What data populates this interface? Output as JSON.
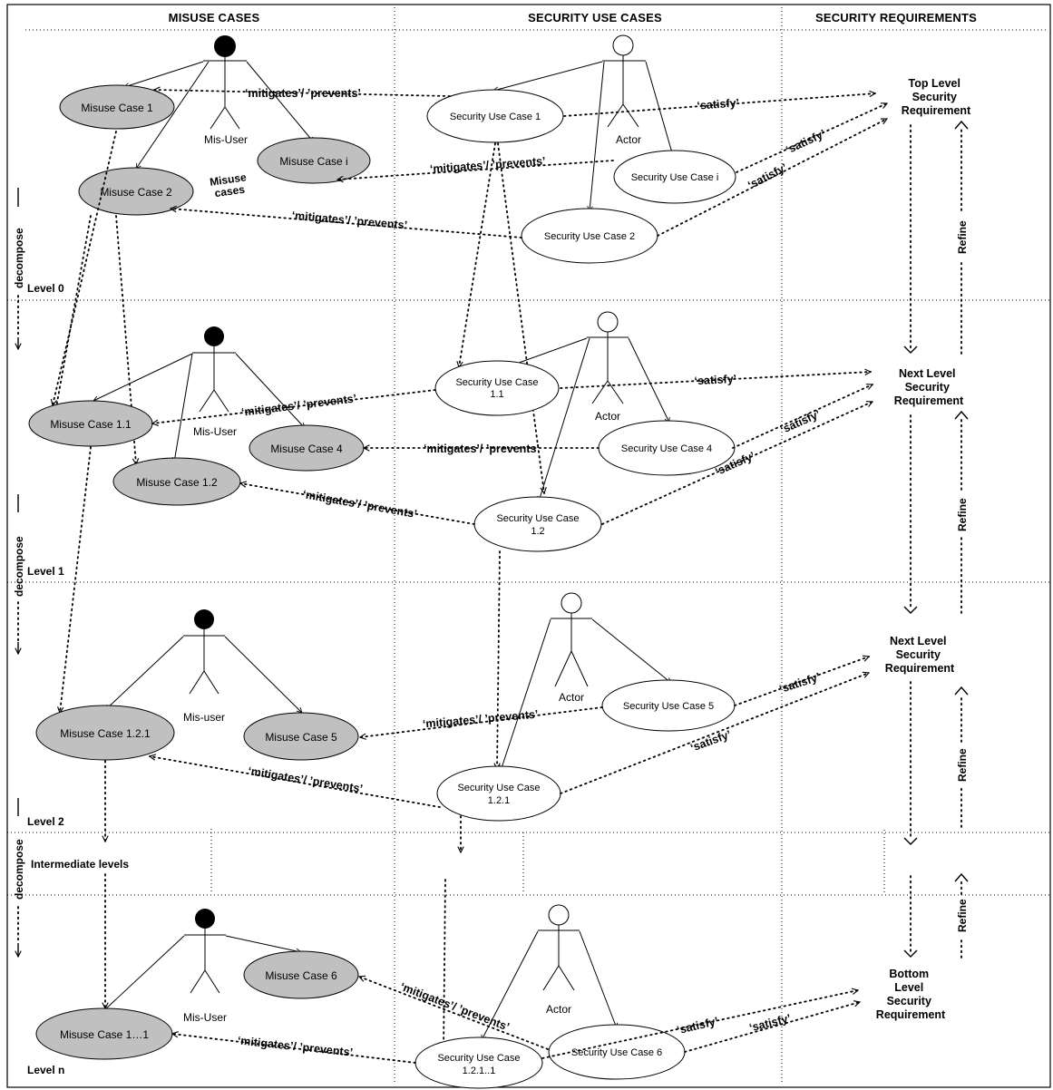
{
  "headers": {
    "misuse": "MISUSE CASES",
    "security_use": "SECURITY USE CASES",
    "requirements": "SECURITY REQUIREMENTS"
  },
  "levels": {
    "l0": "Level 0",
    "l1": "Level 1",
    "l2": "Level 2",
    "intermediate": "Intermediate levels",
    "ln": "Level n"
  },
  "decompose": "decompose",
  "refine": "Refine",
  "actors": {
    "misuser0": "Mis-User",
    "actor0": "Actor",
    "misuser1": "Mis-User",
    "actor1": "Actor",
    "misuser2": "Mis-user",
    "actor2": "Actor",
    "misusern": "Mis-User",
    "actorn": "Actor"
  },
  "misuse_cases": {
    "mc1": "Misuse Case 1",
    "mci": "Misuse Case i",
    "mc2": "Misuse Case 2",
    "mc11": "Misuse Case 1.1",
    "mc4": "Misuse Case 4",
    "mc12": "Misuse Case 1.2",
    "mc121": "Misuse Case 1.2.1",
    "mc5": "Misuse Case 5",
    "mc6": "Misuse Case 6",
    "mc1n": "Misuse Case 1…1"
  },
  "security_use_cases": {
    "suc1": "Security Use Case 1",
    "suci": "Security Use Case i",
    "suc2": "Security Use Case 2",
    "suc11_a": "Security Use Case",
    "suc11_b": "1.1",
    "suc4": "Security Use Case 4",
    "suc12_a": "Security Use Case",
    "suc12_b": "1.2",
    "suc5": "Security Use Case 5",
    "suc121_a": "Security Use Case",
    "suc121_b": "1.2.1",
    "suc6": "Security Use Case 6",
    "suc1211_a": "Security Use Case",
    "suc1211_b": "1.2.1..1"
  },
  "misuse_cases_note": {
    "a": "Misuse",
    "b": "cases"
  },
  "relations": {
    "mitigates": "‘mitigates’/ ’prevents’",
    "satisfy": "‘satisfy’"
  },
  "requirements": {
    "top": [
      "Top Level",
      "Security",
      "Requirement"
    ],
    "next1": [
      "Next Level",
      "Security",
      "Requirement"
    ],
    "next2": [
      "Next Level",
      "Security",
      "Requirement"
    ],
    "bottom": [
      "Bottom",
      "Level",
      "Security",
      "Requirement"
    ]
  }
}
